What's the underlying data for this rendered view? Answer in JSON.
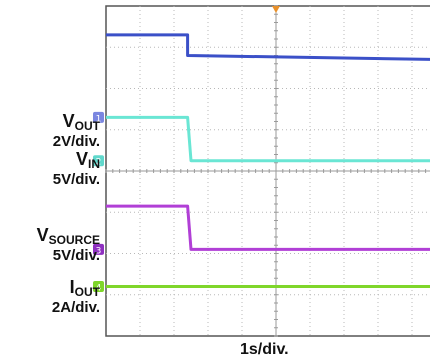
{
  "chart_data": {
    "type": "line",
    "xlabel": "1s/div.",
    "x_divisions": 10,
    "y_divisions": 8,
    "xlim": [
      0,
      10
    ],
    "ylim": [
      0,
      8
    ],
    "grid": true,
    "trigger_marker_color": "#e8902a",
    "series": [
      {
        "name": "VIN",
        "label_symbol": "V",
        "label_subscript": "IN",
        "scale": "5V/div.",
        "channel": "2",
        "color": "#3b50c8",
        "marker_color": "#60d8cc",
        "ground_div": 4.25,
        "points": [
          [
            0,
            7.3
          ],
          [
            2.4,
            7.3
          ],
          [
            2.4,
            6.8
          ],
          [
            10,
            6.7
          ]
        ]
      },
      {
        "name": "VOUT",
        "label_symbol": "V",
        "label_subscript": "OUT",
        "scale": "2V/div.",
        "channel": "1",
        "color": "#6ae6d4",
        "marker_color": "#7a86e0",
        "ground_div": 5.3,
        "points": [
          [
            0,
            5.3
          ],
          [
            2.4,
            5.3
          ],
          [
            2.5,
            4.25
          ],
          [
            10,
            4.25
          ]
        ]
      },
      {
        "name": "VSOURCE",
        "label_symbol": "V",
        "label_subscript": "SOURCE",
        "scale": "5V/div.",
        "channel": "3",
        "color": "#b13fd6",
        "marker_color": "#8e2fc0",
        "ground_div": 2.1,
        "points": [
          [
            0,
            3.15
          ],
          [
            2.4,
            3.15
          ],
          [
            2.5,
            2.1
          ],
          [
            10,
            2.1
          ]
        ]
      },
      {
        "name": "IOUT",
        "label_symbol": "I",
        "label_subscript": "OUT",
        "scale": "2A/div.",
        "channel": "4",
        "color": "#7fd62a",
        "marker_color": "#7fd62a",
        "ground_div": 1.2,
        "points": [
          [
            0,
            1.2
          ],
          [
            10,
            1.2
          ]
        ]
      }
    ]
  }
}
